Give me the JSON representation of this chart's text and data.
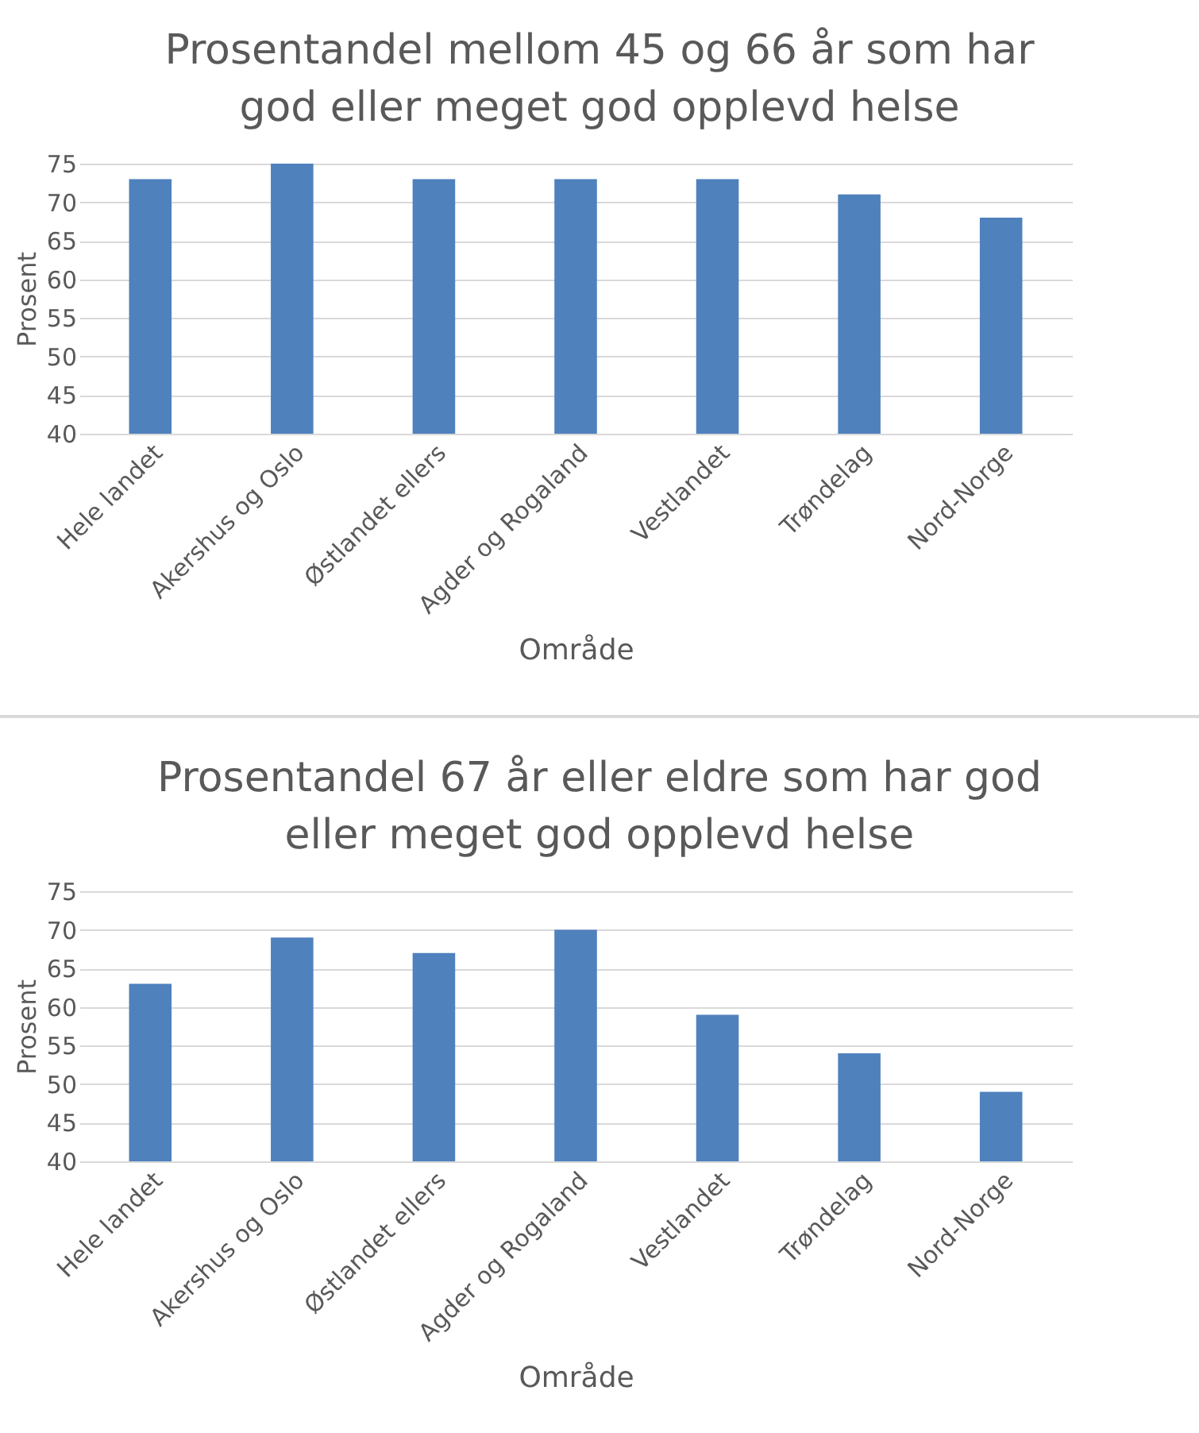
{
  "chart_data": [
    {
      "type": "bar",
      "title": "Prosentandel mellom 45 og 66 år som har god eller meget god opplevd helse",
      "xlabel": "Område",
      "ylabel": "Prosent",
      "categories": [
        "Hele landet",
        "Akershus og Oslo",
        "Østlandet ellers",
        "Agder og Rogaland",
        "Vestlandet",
        "Trøndelag",
        "Nord-Norge"
      ],
      "values": [
        73,
        75,
        73,
        73,
        73,
        71,
        68
      ],
      "color": "#4f81bd",
      "ylim": [
        40,
        75
      ],
      "yticks": [
        40,
        45,
        50,
        55,
        60,
        65,
        70,
        75
      ],
      "grid": "y"
    },
    {
      "type": "bar",
      "title": "Prosentandel 67 år eller eldre som har god eller meget god opplevd helse",
      "xlabel": "Område",
      "ylabel": "Prosent",
      "categories": [
        "Hele landet",
        "Akershus og Oslo",
        "Østlandet ellers",
        "Agder og Rogaland",
        "Vestlandet",
        "Trøndelag",
        "Nord-Norge"
      ],
      "values": [
        63,
        69,
        67,
        70,
        59,
        54,
        49
      ],
      "color": "#4f81bd",
      "ylim": [
        40,
        75
      ],
      "yticks": [
        40,
        45,
        50,
        55,
        60,
        65,
        70,
        75
      ],
      "grid": "y"
    }
  ]
}
